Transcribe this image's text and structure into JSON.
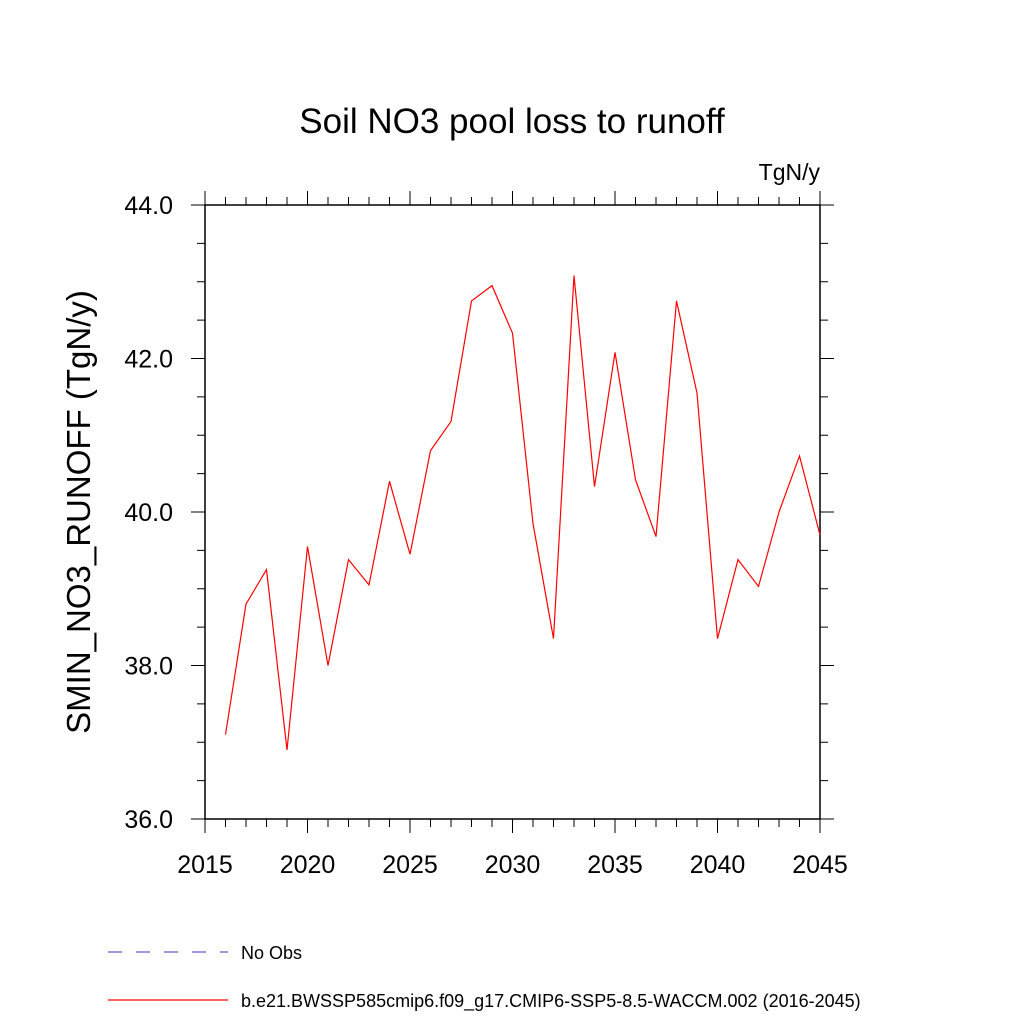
{
  "chart_data": {
    "type": "line",
    "title": "Soil NO3 pool loss to runoff",
    "units": "TgN/y",
    "ylabel": "SMIN_NO3_RUNOFF  (TgN/y)",
    "xlabel": "",
    "xlim": [
      2015,
      2045
    ],
    "ylim": [
      36.0,
      44.0
    ],
    "x_ticks": [
      "2015",
      "2020",
      "2025",
      "2030",
      "2035",
      "2040",
      "2045"
    ],
    "y_ticks": [
      "36.0",
      "38.0",
      "40.0",
      "42.0",
      "44.0"
    ],
    "grid": false,
    "legend_position": "bottom-left",
    "series": [
      {
        "name": "No Obs",
        "color": "#6a5acd",
        "style": "dashed",
        "x": [],
        "values": []
      },
      {
        "name": "b.e21.BWSSP585cmip6.f09_g17.CMIP6-SSP5-8.5-WACCM.002 (2016-2045)",
        "color": "#ff0000",
        "style": "solid",
        "x": [
          2016,
          2017,
          2018,
          2019,
          2020,
          2021,
          2022,
          2023,
          2024,
          2025,
          2026,
          2027,
          2028,
          2029,
          2030,
          2031,
          2032,
          2033,
          2034,
          2035,
          2036,
          2037,
          2038,
          2039,
          2040,
          2041,
          2042,
          2043,
          2044,
          2045
        ],
        "values": [
          37.1,
          38.8,
          39.25,
          36.9,
          39.55,
          38.0,
          39.38,
          39.05,
          40.4,
          39.45,
          40.8,
          41.18,
          42.75,
          42.95,
          42.33,
          39.85,
          38.35,
          43.08,
          40.33,
          42.08,
          40.42,
          39.68,
          42.75,
          41.55,
          38.35,
          39.38,
          39.03,
          40.0,
          40.73,
          39.7
        ]
      }
    ]
  }
}
